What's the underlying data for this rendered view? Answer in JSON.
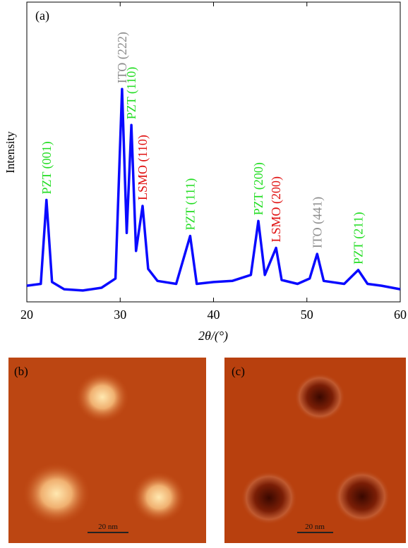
{
  "chart_data": {
    "type": "line",
    "panel_label": "(a)",
    "x_label": "2θ/(°)",
    "y_label": "Intensity",
    "xlim": [
      20,
      60
    ],
    "ylim": [
      0,
      100
    ],
    "xticks": [
      20,
      30,
      40,
      50,
      60
    ],
    "x": [
      20,
      21.5,
      22.1,
      22.7,
      24,
      26,
      28,
      29.5,
      30.2,
      30.7,
      31.2,
      31.7,
      32.4,
      33,
      34,
      36,
      37.5,
      38.2,
      40,
      42,
      44,
      44.8,
      45.5,
      46.7,
      47.3,
      49,
      50.3,
      51.1,
      51.8,
      54,
      55.5,
      56.5,
      58,
      60
    ],
    "series": [
      {
        "color": "#0a0aff",
        "values": [
          5.4,
          6,
          34,
          6.6,
          4.2,
          3.8,
          4.7,
          7.8,
          71,
          23,
          59,
          17,
          32,
          11,
          7,
          6,
          22,
          6,
          6.6,
          7,
          9,
          27,
          9,
          18,
          7.3,
          6,
          7.8,
          16,
          7,
          6,
          10.6,
          6,
          5.4,
          4.2
        ]
      }
    ],
    "annotations": [
      {
        "text": "PZT (001)",
        "x": 22.1,
        "color": "#22dd22"
      },
      {
        "text": "ITO (222)",
        "x": 30.2,
        "color": "#8c8c8c"
      },
      {
        "text": "PZT (110)",
        "x": 31.2,
        "color": "#22dd22"
      },
      {
        "text": "LSMO (110)",
        "x": 32.4,
        "color": "#e01010"
      },
      {
        "text": "PZT (111)",
        "x": 37.5,
        "color": "#22dd22"
      },
      {
        "text": "PZT (200)",
        "x": 44.8,
        "color": "#22dd22"
      },
      {
        "text": "LSMO (200)",
        "x": 46.7,
        "color": "#e01010"
      },
      {
        "text": "ITO (441)",
        "x": 51.1,
        "color": "#8c8c8c"
      },
      {
        "text": "PZT (211)",
        "x": 55.5,
        "color": "#22dd22"
      }
    ]
  },
  "images": [
    {
      "label": "(b)",
      "scale_bar": "20 nm"
    },
    {
      "label": "(c)",
      "scale_bar": "20 nm"
    }
  ]
}
